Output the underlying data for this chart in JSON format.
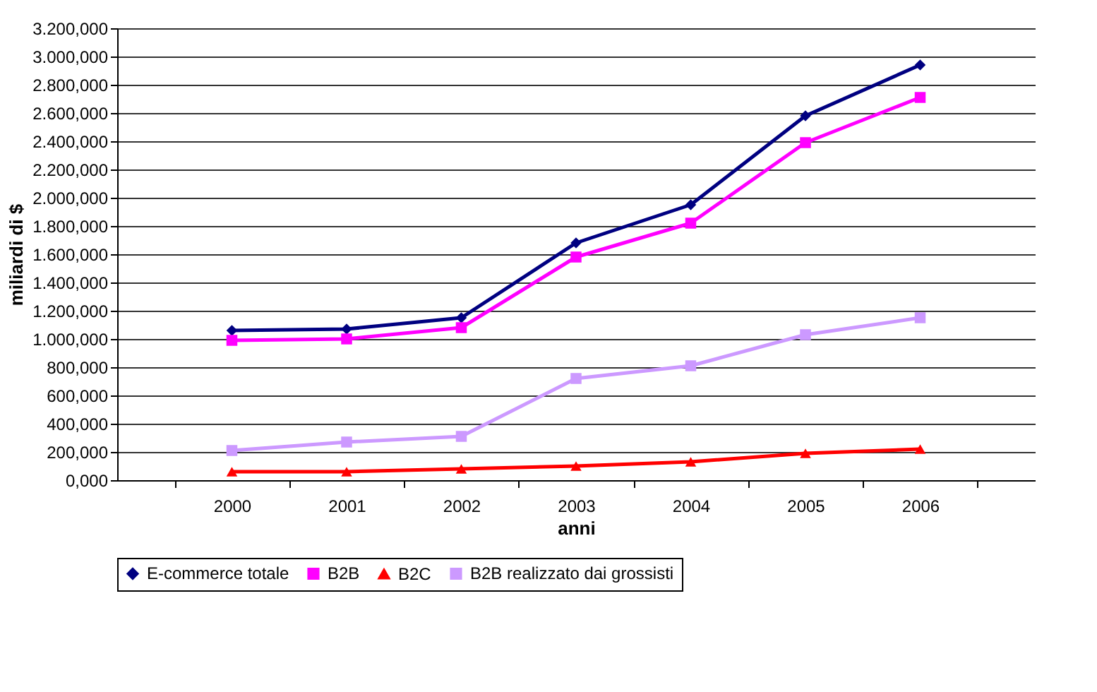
{
  "chart_data": {
    "type": "line",
    "xlabel": "anni",
    "ylabel": "miliardi di $",
    "categories": [
      "2000",
      "2001",
      "2002",
      "2003",
      "2004",
      "2005",
      "2006"
    ],
    "series": [
      {
        "name": "E-commerce totale",
        "color": "#000080",
        "marker": "diamond",
        "values": [
          1060,
          1070,
          1150,
          1680,
          1950,
          2580,
          2940
        ]
      },
      {
        "name": "B2B",
        "color": "#ff00ff",
        "marker": "square",
        "values": [
          990,
          1000,
          1080,
          1580,
          1820,
          2390,
          2710
        ]
      },
      {
        "name": "B2C",
        "color": "#ff0000",
        "marker": "triangle",
        "values": [
          60,
          60,
          80,
          100,
          130,
          190,
          220
        ]
      },
      {
        "name": "B2B realizzato dai grossisti",
        "color": "#cc99ff",
        "marker": "square",
        "values": [
          210,
          270,
          310,
          720,
          810,
          1030,
          1150
        ]
      }
    ],
    "ylim": [
      0,
      3200
    ],
    "yticks": [
      {
        "value": 0,
        "label": "0,000"
      },
      {
        "value": 200,
        "label": "200,000"
      },
      {
        "value": 400,
        "label": "400,000"
      },
      {
        "value": 600,
        "label": "600,000"
      },
      {
        "value": 800,
        "label": "800,000"
      },
      {
        "value": 1000,
        "label": "1.000,000"
      },
      {
        "value": 1200,
        "label": "1.200,000"
      },
      {
        "value": 1400,
        "label": "1.400,000"
      },
      {
        "value": 1600,
        "label": "1.600,000"
      },
      {
        "value": 1800,
        "label": "1.800,000"
      },
      {
        "value": 2000,
        "label": "2.000,000"
      },
      {
        "value": 2200,
        "label": "2.200,000"
      },
      {
        "value": 2400,
        "label": "2.400,000"
      },
      {
        "value": 2600,
        "label": "2.600,000"
      },
      {
        "value": 2800,
        "label": "2.800,000"
      },
      {
        "value": 3000,
        "label": "3.000,000"
      },
      {
        "value": 3200,
        "label": "3.200,000"
      }
    ],
    "grid": "y",
    "legend": "bottom"
  }
}
